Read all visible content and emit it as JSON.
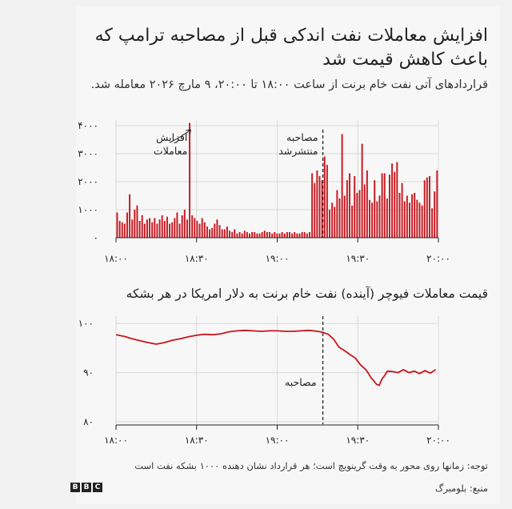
{
  "headline": "افزایش معاملات نفت اندکی قبل از مصاحبه ترامپ که باعث کاهش قیمت شد",
  "subtitle": "قراردادهای آتی نفت خام برنت از ساعت ۱۸:۰۰ تا ۲۰:۰۰، ۹ مارچ ۲۰۲۶ معامله شد.",
  "footnote": "توجه: زمانها روی محور به وقت گرینویچ است؛ هر قرارداد نشان دهنده ۱۰۰۰ بشکه نفت است",
  "source": "منبع: بلومبرگ",
  "logo_letters": [
    "B",
    "B",
    "C"
  ],
  "colors": {
    "series": "#c8161d",
    "grid": "#d9d9d9",
    "axis": "#222222"
  },
  "chart_data": [
    {
      "type": "bar",
      "title": "",
      "x_tick_labels": [
        "۱۸:۰۰",
        "۱۸:۳۰",
        "۱۹:۰۰",
        "۱۹:۳۰",
        "۲۰:۰۰"
      ],
      "x_tick_minutes": [
        0,
        30,
        60,
        90,
        120
      ],
      "y_tick_labels": [
        "۰",
        "۱۰۰۰",
        "۲۰۰۰",
        "۳۰۰۰",
        "۴۰۰۰"
      ],
      "y_ticks": [
        0,
        1000,
        2000,
        3000,
        4000
      ],
      "ylim": [
        0,
        4200
      ],
      "xlim_minutes": [
        0,
        120
      ],
      "annotations": [
        {
          "text": [
            "افزایش",
            "معاملات"
          ],
          "x_minute": 29
        },
        {
          "text": [
            "مصاحبه",
            "منتشرشد"
          ],
          "x_minute": 77
        }
      ],
      "event_minute": 77,
      "values": [
        900,
        600,
        550,
        500,
        900,
        1550,
        650,
        1000,
        1150,
        600,
        800,
        500,
        650,
        700,
        550,
        700,
        500,
        650,
        800,
        600,
        750,
        500,
        550,
        700,
        900,
        500,
        800,
        1000,
        650,
        4100,
        800,
        700,
        600,
        500,
        700,
        550,
        400,
        300,
        350,
        500,
        650,
        450,
        300,
        300,
        400,
        250,
        200,
        300,
        150,
        200,
        150,
        250,
        200,
        150,
        200,
        200,
        150,
        150,
        200,
        250,
        200,
        200,
        150,
        200,
        150,
        150,
        200,
        150,
        200,
        200,
        150,
        200,
        150,
        150,
        200,
        200,
        150,
        200,
        2300,
        1950,
        2400,
        2200,
        2050,
        2900,
        2600,
        1000,
        1250,
        1100,
        1700,
        1400,
        3700,
        1500,
        2050,
        2300,
        1150,
        2200,
        1600,
        1700,
        3350,
        1900,
        2400,
        1350,
        1250,
        2050,
        1300,
        1500,
        2300,
        2300,
        1400,
        2250,
        2650,
        2350,
        2700,
        1600,
        1950,
        1300,
        1500,
        1250,
        1550,
        1600,
        1350,
        1250,
        1150,
        2050,
        2150,
        2200,
        1050,
        1650,
        2400
      ]
    },
    {
      "type": "line",
      "title": "قیمت معاملات فیوچر (آینده) نفت خام برنت به دلار امریکا در هر بشکه",
      "x_tick_labels": [
        "۱۸:۰۰",
        "۱۸:۳۰",
        "۱۹:۰۰",
        "۱۹:۳۰",
        "۲۰:۰۰"
      ],
      "x_tick_minutes": [
        0,
        30,
        60,
        90,
        120
      ],
      "y_tick_labels": [
        "۸۰",
        "۹۰",
        "۱۰۰"
      ],
      "y_ticks": [
        80,
        90,
        100
      ],
      "ylim": [
        79.5,
        101.5
      ],
      "xlim_minutes": [
        0,
        120
      ],
      "event_minute": 77,
      "event_label": "مصاحبه",
      "x_minutes": [
        0,
        3,
        6,
        9,
        12,
        15,
        18,
        21,
        24,
        27,
        30,
        33,
        36,
        39,
        42,
        45,
        48,
        51,
        54,
        57,
        60,
        63,
        66,
        69,
        72,
        75,
        77,
        79,
        81,
        83,
        85,
        87,
        89,
        91,
        93,
        94,
        95,
        96,
        97,
        98,
        99,
        100,
        101,
        103,
        105,
        107,
        109,
        111,
        113,
        115,
        117,
        119
      ],
      "y_values": [
        97.7,
        97.4,
        96.9,
        96.5,
        96.1,
        95.8,
        96.1,
        96.6,
        96.9,
        97.3,
        97.6,
        97.8,
        97.7,
        97.9,
        98.3,
        98.5,
        98.6,
        98.5,
        98.4,
        98.5,
        98.5,
        98.4,
        98.4,
        98.5,
        98.6,
        98.4,
        98.2,
        97.8,
        96.8,
        95.2,
        94.5,
        93.7,
        93.0,
        91.6,
        90.6,
        89.8,
        88.9,
        88.3,
        87.6,
        87.4,
        88.7,
        89.4,
        90.3,
        90.2,
        90.0,
        90.6,
        90.0,
        90.3,
        89.8,
        90.4,
        89.9,
        90.6
      ]
    }
  ]
}
